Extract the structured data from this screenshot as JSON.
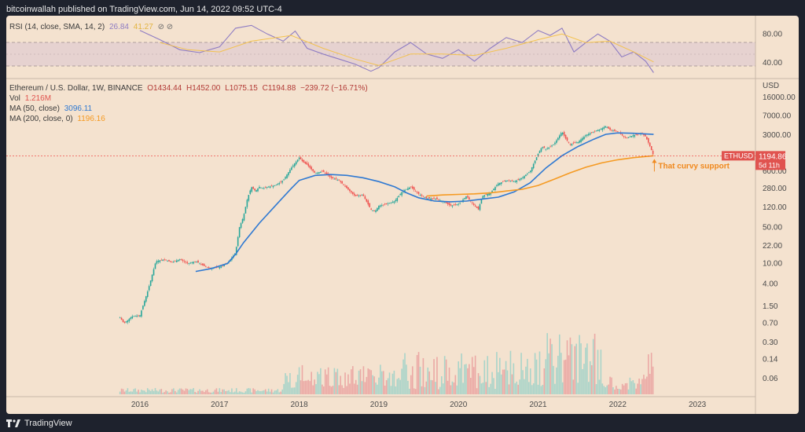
{
  "header": {
    "publish_text": "bitcoinwallah published on TradingView.com, Jun 14, 2022 09:52 UTC-4"
  },
  "footer": {
    "brand": "TradingView"
  },
  "rsi_legend": {
    "label": "RSI (14, close, SMA, 14, 2)",
    "rsi_value": "26.84",
    "sma_value": "41.27",
    "icons": "⊘ ⊘"
  },
  "main_legend": {
    "title": "Ethereum / U.S. Dollar, 1W, BINANCE",
    "open": "O1434.44",
    "high": "H1452.00",
    "low": "L1075.15",
    "close": "C1194.88",
    "change": "−239.72 (−16.71%)",
    "vol_label": "Vol",
    "vol_value": "1.216M",
    "ma50_label": "MA (50, close)",
    "ma50_value": "3096.11",
    "ma200_label": "MA (200, close, 0)",
    "ma200_value": "1196.16"
  },
  "price_tag": {
    "symbol": "ETHUSD",
    "price": "1194.86",
    "countdown": "5d 11h"
  },
  "annotation": "That curvy support",
  "colors": {
    "up": "#26a69a",
    "down": "#ef5350",
    "ma50": "#2f79d2",
    "ma200": "#f59a22",
    "rsi": "#8e7cc3",
    "rsi_sma": "#f3c24f",
    "background": "#f4e2cf",
    "frame": "#1e222d"
  },
  "chart_data": [
    {
      "type": "line",
      "title": "RSI (14, close, SMA, 14, 2)",
      "ytick_labels": [
        "80.00",
        "40.00"
      ],
      "bands": [
        70,
        30
      ],
      "ylim": [
        20,
        100
      ],
      "series": [
        {
          "name": "RSI",
          "x": [
            2016.0,
            2016.25,
            2016.5,
            2016.75,
            2017.0,
            2017.2,
            2017.4,
            2017.6,
            2017.8,
            2017.95,
            2018.1,
            2018.3,
            2018.5,
            2018.7,
            2018.9,
            2019.0,
            2019.2,
            2019.4,
            2019.6,
            2019.8,
            2020.0,
            2020.2,
            2020.4,
            2020.6,
            2020.8,
            2021.0,
            2021.15,
            2021.3,
            2021.45,
            2021.6,
            2021.75,
            2021.9,
            2022.05,
            2022.2,
            2022.35,
            2022.45
          ],
          "values": [
            85,
            72,
            58,
            54,
            62,
            88,
            92,
            80,
            70,
            84,
            60,
            52,
            45,
            38,
            28,
            33,
            55,
            68,
            52,
            46,
            58,
            42,
            60,
            75,
            68,
            85,
            78,
            88,
            55,
            68,
            80,
            70,
            48,
            55,
            42,
            26
          ]
        },
        {
          "name": "SMA",
          "x": [
            2016.25,
            2016.6,
            2017.0,
            2017.4,
            2017.9,
            2018.3,
            2018.7,
            2019.0,
            2019.4,
            2019.8,
            2020.2,
            2020.6,
            2021.0,
            2021.3,
            2021.6,
            2021.9,
            2022.2,
            2022.45
          ],
          "values": [
            68,
            58,
            55,
            70,
            78,
            60,
            45,
            36,
            52,
            52,
            50,
            60,
            72,
            80,
            68,
            70,
            55,
            41
          ]
        }
      ]
    },
    {
      "type": "candlestick",
      "title": "Ethereum / U.S. Dollar, 1W, BINANCE",
      "x_ticks": [
        "2016",
        "2017",
        "2018",
        "2019",
        "2020",
        "2021",
        "2022",
        "2023"
      ],
      "y_ticks": [
        "16000.00",
        "7000.00",
        "3000.00",
        "600.00",
        "280.00",
        "120.00",
        "50.00",
        "22.00",
        "10.00",
        "4.00",
        "1.50",
        "0.70",
        "0.30",
        "0.14",
        "0.06"
      ],
      "yscale": "log",
      "y_axis_label": "USD",
      "price_path": {
        "x": [
          2015.75,
          2015.8,
          2015.9,
          2016.0,
          2016.1,
          2016.2,
          2016.3,
          2016.4,
          2016.5,
          2016.6,
          2016.7,
          2016.8,
          2016.9,
          2017.0,
          2017.1,
          2017.2,
          2017.25,
          2017.3,
          2017.35,
          2017.4,
          2017.45,
          2017.5,
          2017.55,
          2017.6,
          2017.7,
          2017.8,
          2017.9,
          2018.0,
          2018.05,
          2018.1,
          2018.2,
          2018.3,
          2018.4,
          2018.5,
          2018.6,
          2018.7,
          2018.8,
          2018.9,
          2018.95,
          2019.0,
          2019.1,
          2019.2,
          2019.3,
          2019.4,
          2019.5,
          2019.6,
          2019.7,
          2019.8,
          2019.9,
          2020.0,
          2020.1,
          2020.2,
          2020.25,
          2020.3,
          2020.4,
          2020.5,
          2020.6,
          2020.7,
          2020.8,
          2020.9,
          2021.0,
          2021.05,
          2021.1,
          2021.2,
          2021.3,
          2021.35,
          2021.4,
          2021.5,
          2021.6,
          2021.7,
          2021.8,
          2021.85,
          2021.9,
          2022.0,
          2022.1,
          2022.2,
          2022.3,
          2022.35,
          2022.4,
          2022.45
        ],
        "values": [
          0.9,
          0.7,
          0.95,
          1.0,
          3,
          11,
          12,
          10.5,
          12,
          10,
          11,
          9,
          8,
          8.5,
          10,
          16,
          50,
          80,
          180,
          300,
          250,
          300,
          280,
          300,
          320,
          400,
          700,
          1100,
          900,
          800,
          550,
          600,
          450,
          400,
          280,
          200,
          210,
          110,
          100,
          130,
          140,
          160,
          250,
          300,
          220,
          180,
          180,
          160,
          130,
          140,
          200,
          130,
          110,
          200,
          230,
          350,
          400,
          380,
          450,
          600,
          1300,
          1800,
          1600,
          2000,
          3500,
          2500,
          2000,
          2200,
          3000,
          3500,
          4000,
          4500,
          3800,
          3500,
          2600,
          3000,
          3200,
          2800,
          1900,
          1194.86
        ]
      },
      "series": [
        {
          "name": "MA (50, close)",
          "x": [
            2016.7,
            2016.9,
            2017.1,
            2017.2,
            2017.3,
            2017.5,
            2017.7,
            2017.9,
            2018.0,
            2018.2,
            2018.4,
            2018.6,
            2018.8,
            2019.0,
            2019.2,
            2019.35,
            2019.5,
            2019.7,
            2019.9,
            2020.1,
            2020.3,
            2020.5,
            2020.7,
            2020.9,
            2021.1,
            2021.3,
            2021.5,
            2021.7,
            2021.85,
            2022.0,
            2022.2,
            2022.45
          ],
          "values": [
            7,
            8,
            10,
            15,
            25,
            60,
            130,
            280,
            400,
            500,
            520,
            500,
            450,
            380,
            300,
            230,
            185,
            160,
            155,
            160,
            175,
            190,
            240,
            360,
            700,
            1200,
            1800,
            2500,
            3100,
            3300,
            3250,
            3096.11
          ]
        },
        {
          "name": "MA (200, close, 0)",
          "x": [
            2019.6,
            2019.8,
            2020.0,
            2020.2,
            2020.4,
            2020.6,
            2020.8,
            2021.0,
            2021.2,
            2021.4,
            2021.6,
            2021.8,
            2022.0,
            2022.2,
            2022.45
          ],
          "values": [
            200,
            210,
            215,
            220,
            230,
            250,
            270,
            320,
            420,
            560,
            720,
            870,
            1000,
            1100,
            1196.16
          ]
        }
      ]
    }
  ]
}
